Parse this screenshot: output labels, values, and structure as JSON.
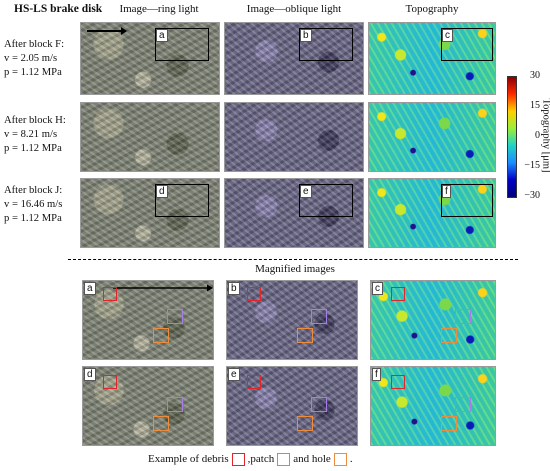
{
  "title": "HS-LS brake disk",
  "column_headers": [
    "Image—ring light",
    "Image—oblique light",
    "Topography"
  ],
  "rows": [
    {
      "label": "After block F:",
      "v": "v = 2.05 m/s",
      "p": "p = 1.12 MPa"
    },
    {
      "label": "After block H:",
      "v": "v = 8.21 m/s",
      "p": "p = 1.12 MPa"
    },
    {
      "label": "After block J:",
      "v": "v = 16.46 m/s",
      "p": "p = 1.12 MPa"
    }
  ],
  "panel_tags_top": [
    "a",
    "b",
    "c",
    "d",
    "e",
    "f"
  ],
  "panel_tags_bottom": [
    "a",
    "b",
    "c",
    "d",
    "e",
    "f"
  ],
  "colorbar": {
    "label": "Topography [μm]",
    "ticks": [
      "30",
      "15",
      "0",
      "−15",
      "−30"
    ],
    "colors": [
      "#8b0000",
      "#ff2a00",
      "#ffd000",
      "#9bee3a",
      "#20d3c7",
      "#1e8cff",
      "#0000c8",
      "#00007a"
    ]
  },
  "magnified_heading": "Magnified images",
  "legend": {
    "prefix": "Example of debris",
    "patch": ",patch",
    "hole": "and hole",
    "end": ".",
    "debris_color": "#e0262b",
    "patch_color": "#a77ee8",
    "hole_color": "#ef8c3c"
  }
}
